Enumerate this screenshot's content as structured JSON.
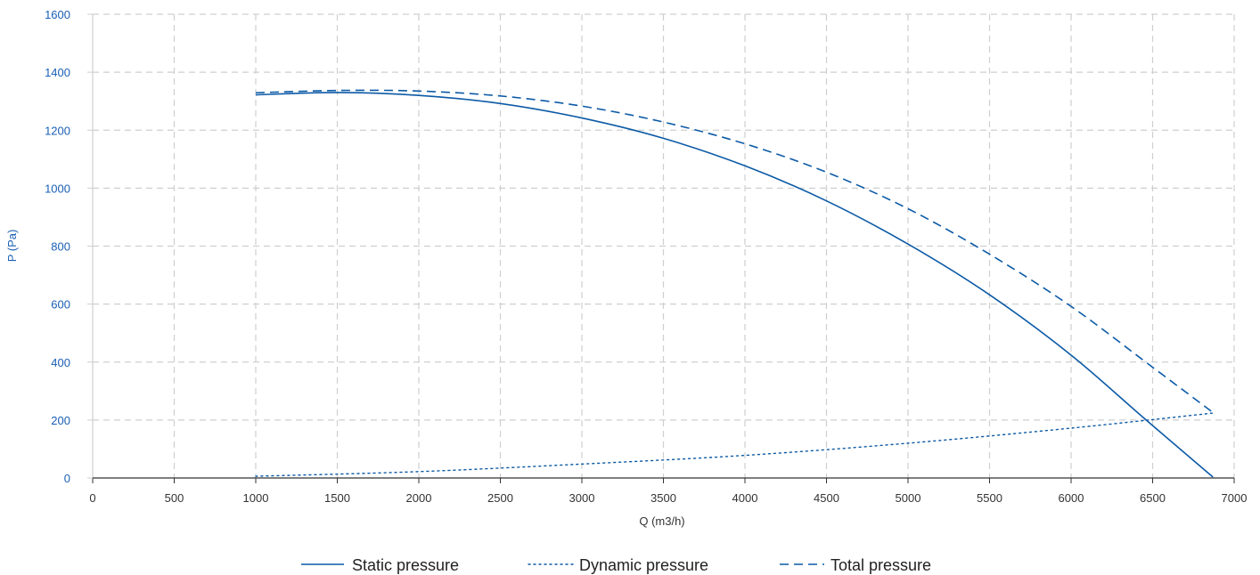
{
  "colors": {
    "series": "#0c5aa6",
    "grid": "#cfcfcf",
    "axis": "#333333",
    "y_axis_text": "#1a5fb4"
  },
  "chart_data": {
    "type": "line",
    "xlabel": "Q (m3/h)",
    "ylabel": "P (Pa)",
    "xlim": [
      0,
      7000
    ],
    "ylim": [
      0,
      1600
    ],
    "x_ticks": [
      0,
      500,
      1000,
      1500,
      2000,
      2500,
      3000,
      3500,
      4000,
      4500,
      5000,
      5500,
      6000,
      6500,
      7000
    ],
    "y_ticks": [
      0,
      200,
      400,
      600,
      800,
      1000,
      1200,
      1400,
      1600
    ],
    "grid": true,
    "grid_style": "dashed",
    "legend_position": "bottom-center",
    "series": [
      {
        "name": "Static pressure",
        "line_style": "solid",
        "x": [
          1000,
          1500,
          2000,
          2500,
          3000,
          3500,
          4000,
          4500,
          5000,
          5500,
          6000,
          6450,
          6870
        ],
        "y": [
          1322,
          1330,
          1320,
          1292,
          1242,
          1172,
          1077,
          956,
          807,
          632,
          424,
          205,
          3
        ]
      },
      {
        "name": "Dynamic pressure",
        "line_style": "dotted",
        "x": [
          1000,
          2000,
          3000,
          4000,
          5000,
          6000,
          6870
        ],
        "y": [
          6,
          22,
          48,
          78,
          120,
          172,
          224
        ]
      },
      {
        "name": "Total pressure",
        "line_style": "dashed",
        "x": [
          1000,
          1500,
          2000,
          2500,
          3000,
          3500,
          4000,
          4500,
          5000,
          5500,
          6000,
          6500,
          6870
        ],
        "y": [
          1329,
          1337,
          1335,
          1318,
          1283,
          1228,
          1153,
          1055,
          929,
          772,
          592,
          382,
          226
        ]
      }
    ]
  }
}
